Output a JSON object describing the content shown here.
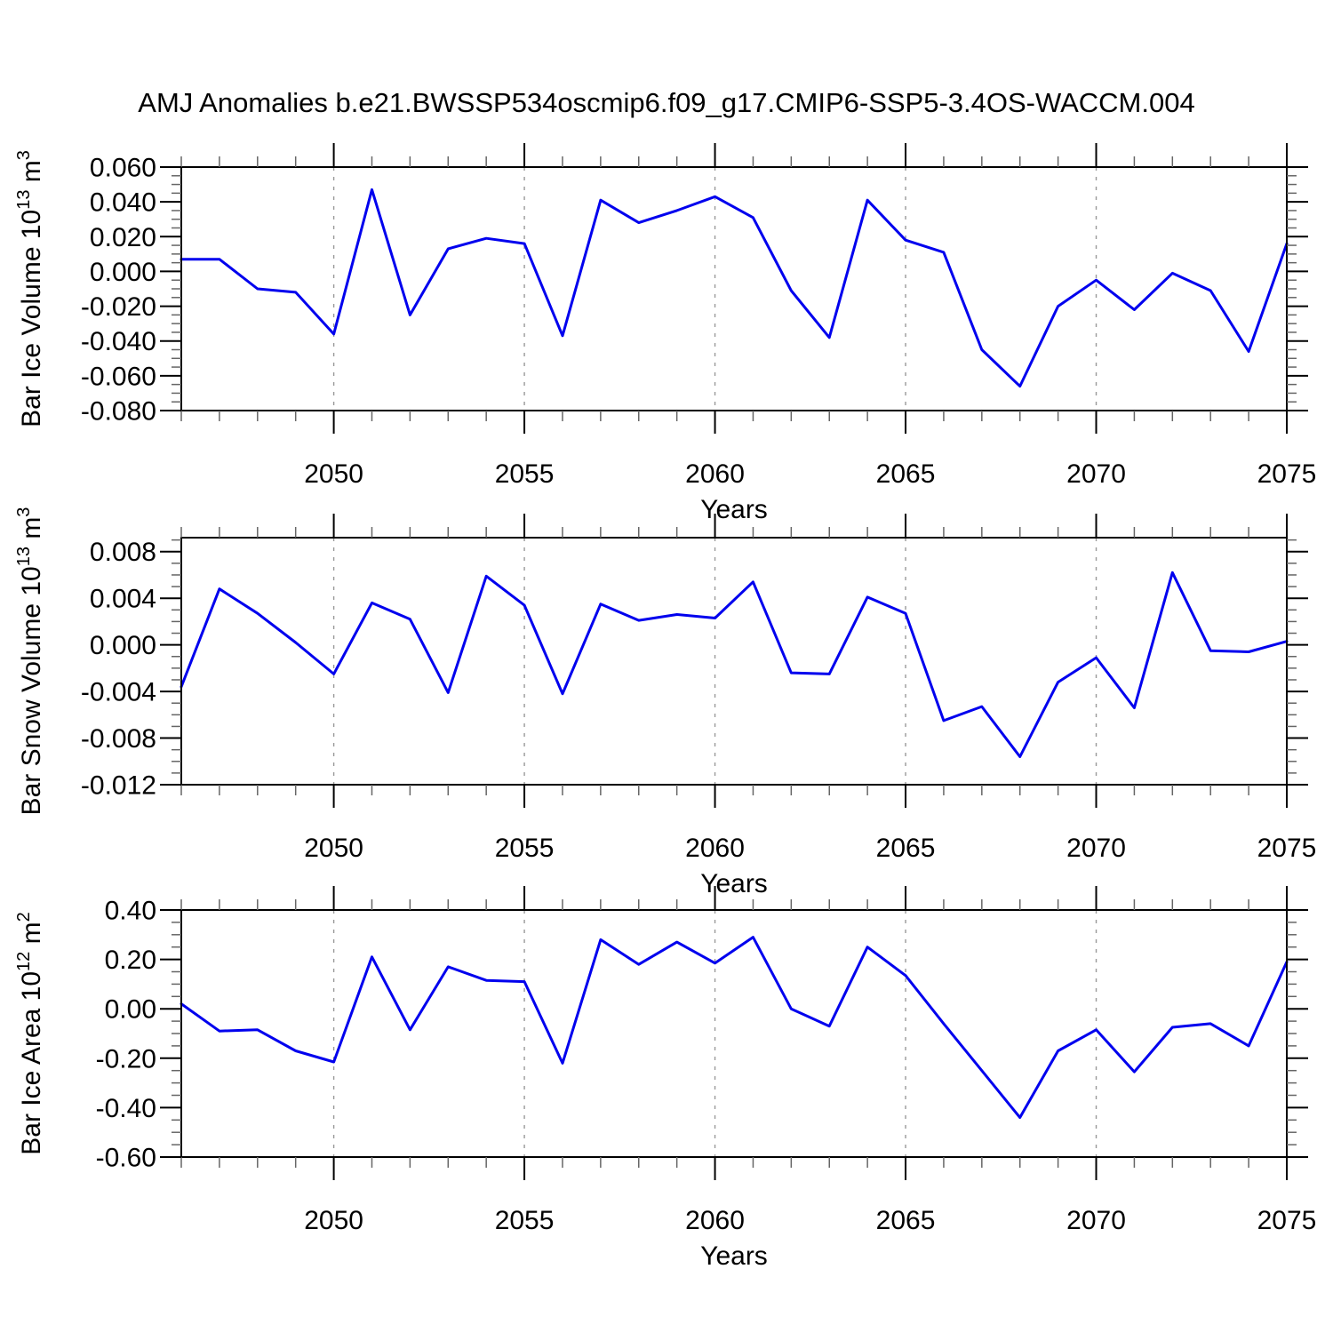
{
  "title": "AMJ Anomalies b.e21.BWSSP534oscmip6.f09_g17.CMIP6-SSP5-3.4OS-WACCM.004",
  "line_color": "#0000EE",
  "grid_color": "#999999",
  "chart_data": [
    {
      "type": "line",
      "name": "bar-ice-volume",
      "xlabel": "Years",
      "ylabel_parts": [
        {
          "t": "Bar Ice Volume 10",
          "sup": false
        },
        {
          "t": "13",
          "sup": true
        },
        {
          "t": " m",
          "sup": false
        },
        {
          "t": "3",
          "sup": true
        }
      ],
      "x": [
        2046,
        2047,
        2048,
        2049,
        2050,
        2051,
        2052,
        2053,
        2054,
        2055,
        2056,
        2057,
        2058,
        2059,
        2060,
        2061,
        2062,
        2063,
        2064,
        2065,
        2066,
        2067,
        2068,
        2069,
        2070,
        2071,
        2072,
        2073,
        2074,
        2075
      ],
      "y": [
        0.007,
        0.007,
        -0.01,
        -0.012,
        -0.036,
        0.047,
        -0.025,
        0.013,
        0.019,
        0.016,
        -0.037,
        0.041,
        0.028,
        0.035,
        0.043,
        0.031,
        -0.011,
        -0.038,
        0.041,
        0.018,
        0.011,
        -0.045,
        -0.066,
        -0.02,
        -0.005,
        -0.022,
        -0.001,
        -0.011,
        -0.046,
        0.016
      ],
      "xlim": [
        2046,
        2075
      ],
      "ylim": [
        -0.08,
        0.06
      ],
      "yticks": {
        "values": [
          0.06,
          0.04,
          0.02,
          0.0,
          -0.02,
          -0.04,
          -0.06,
          -0.08
        ],
        "labels": [
          "0.060",
          "0.040",
          "0.020",
          "0.000",
          "-0.020",
          "-0.040",
          "-0.060",
          "-0.080"
        ],
        "minor_step": 0.005
      },
      "xticks": {
        "values": [
          2050,
          2055,
          2060,
          2065,
          2070,
          2075
        ],
        "labels": [
          "2050",
          "2055",
          "2060",
          "2065",
          "2070",
          "2075"
        ],
        "minor_step": 1
      },
      "x_gridlines": [
        2050,
        2055,
        2060,
        2065,
        2070
      ],
      "grid": true
    },
    {
      "type": "line",
      "name": "bar-snow-volume",
      "xlabel": "Years",
      "ylabel_parts": [
        {
          "t": "Bar Snow Volume 10",
          "sup": false
        },
        {
          "t": "13",
          "sup": true
        },
        {
          "t": " m",
          "sup": false
        },
        {
          "t": "3",
          "sup": true
        }
      ],
      "x": [
        2046,
        2047,
        2048,
        2049,
        2050,
        2051,
        2052,
        2053,
        2054,
        2055,
        2056,
        2057,
        2058,
        2059,
        2060,
        2061,
        2062,
        2063,
        2064,
        2065,
        2066,
        2067,
        2068,
        2069,
        2070,
        2071,
        2072,
        2073,
        2074,
        2075
      ],
      "y": [
        -0.0036,
        0.0048,
        0.0027,
        0.0002,
        -0.0025,
        0.0036,
        0.0022,
        -0.0041,
        0.0059,
        0.0034,
        -0.0042,
        0.0035,
        0.0021,
        0.0026,
        0.0023,
        0.0054,
        -0.0024,
        -0.0025,
        0.0041,
        0.0027,
        -0.0065,
        -0.0053,
        -0.0096,
        -0.0032,
        -0.0011,
        -0.0054,
        0.0062,
        -0.0005,
        -0.0006,
        0.0003
      ],
      "xlim": [
        2046,
        2075
      ],
      "ylim": [
        -0.012,
        0.0092
      ],
      "yticks": {
        "values": [
          0.008,
          0.004,
          0.0,
          -0.004,
          -0.008,
          -0.012
        ],
        "labels": [
          "0.008",
          "0.004",
          "0.000",
          "-0.004",
          "-0.008",
          "-0.012"
        ],
        "minor_step": 0.001
      },
      "xticks": {
        "values": [
          2050,
          2055,
          2060,
          2065,
          2070,
          2075
        ],
        "labels": [
          "2050",
          "2055",
          "2060",
          "2065",
          "2070",
          "2075"
        ],
        "minor_step": 1
      },
      "x_gridlines": [
        2050,
        2055,
        2060,
        2065,
        2070
      ],
      "grid": true
    },
    {
      "type": "line",
      "name": "bar-ice-area",
      "xlabel": "Years",
      "ylabel_parts": [
        {
          "t": "Bar Ice Area 10",
          "sup": false
        },
        {
          "t": "12",
          "sup": true
        },
        {
          "t": " m",
          "sup": false
        },
        {
          "t": "2",
          "sup": true
        }
      ],
      "x": [
        2046,
        2047,
        2048,
        2049,
        2050,
        2051,
        2052,
        2053,
        2054,
        2055,
        2056,
        2057,
        2058,
        2059,
        2060,
        2061,
        2062,
        2063,
        2064,
        2065,
        2066,
        2067,
        2068,
        2069,
        2070,
        2071,
        2072,
        2073,
        2074,
        2075
      ],
      "y": [
        0.02,
        -0.09,
        -0.085,
        -0.17,
        -0.215,
        0.21,
        -0.085,
        0.17,
        0.115,
        0.11,
        -0.22,
        0.28,
        0.18,
        0.27,
        0.185,
        0.29,
        0.0,
        -0.07,
        0.25,
        0.135,
        -0.06,
        -0.25,
        -0.44,
        -0.17,
        -0.085,
        -0.255,
        -0.075,
        -0.06,
        -0.15,
        0.19
      ],
      "xlim": [
        2046,
        2075
      ],
      "ylim": [
        -0.6,
        0.4
      ],
      "yticks": {
        "values": [
          0.4,
          0.2,
          0.0,
          -0.2,
          -0.4,
          -0.6
        ],
        "labels": [
          "0.40",
          "0.20",
          "0.00",
          "-0.20",
          "-0.40",
          "-0.60"
        ],
        "minor_step": 0.05
      },
      "xticks": {
        "values": [
          2050,
          2055,
          2060,
          2065,
          2070,
          2075
        ],
        "labels": [
          "2050",
          "2055",
          "2060",
          "2065",
          "2070",
          "2075"
        ],
        "minor_step": 1
      },
      "x_gridlines": [
        2050,
        2055,
        2060,
        2065,
        2070
      ],
      "grid": true
    }
  ]
}
